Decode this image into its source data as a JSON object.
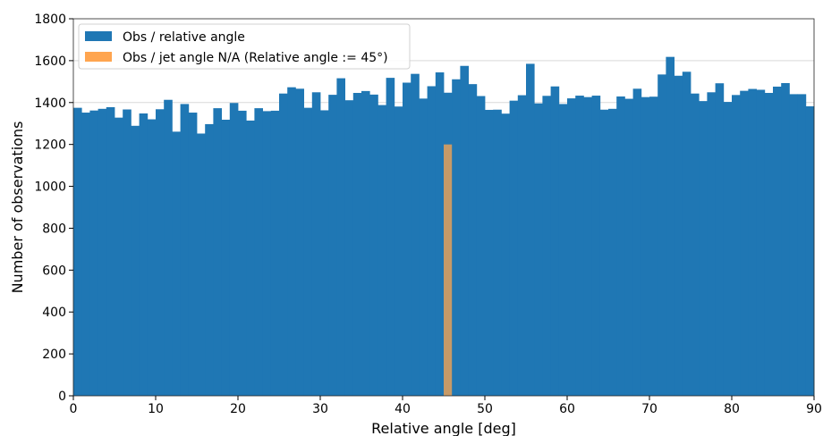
{
  "chart_data": {
    "type": "bar",
    "title": "",
    "xlabel": "Relative angle [deg]",
    "ylabel": "Number of observations",
    "xlim": [
      0,
      90
    ],
    "ylim": [
      0,
      1800
    ],
    "xticks": [
      0,
      10,
      20,
      30,
      40,
      50,
      60,
      70,
      80,
      90
    ],
    "yticks": [
      0,
      200,
      400,
      600,
      800,
      1000,
      1200,
      1400,
      1600,
      1800
    ],
    "grid": "horizontal",
    "legend_position": "top-left",
    "bin_width": 1,
    "series": [
      {
        "name": "Obs / relative angle",
        "color": "#1f77b4",
        "bin_starts": [
          0,
          1,
          2,
          3,
          4,
          5,
          6,
          7,
          8,
          9,
          10,
          11,
          12,
          13,
          14,
          15,
          16,
          17,
          18,
          19,
          20,
          21,
          22,
          23,
          24,
          25,
          26,
          27,
          28,
          29,
          30,
          31,
          32,
          33,
          34,
          35,
          36,
          37,
          38,
          39,
          40,
          41,
          42,
          43,
          44,
          45,
          46,
          47,
          48,
          49,
          50,
          51,
          52,
          53,
          54,
          55,
          56,
          57,
          58,
          59,
          60,
          61,
          62,
          63,
          64,
          65,
          66,
          67,
          68,
          69,
          70,
          71,
          72,
          73,
          74,
          75,
          76,
          77,
          78,
          79,
          80,
          81,
          82,
          83,
          84,
          85,
          86,
          87,
          88,
          89
        ],
        "values": [
          1375,
          1352,
          1362,
          1370,
          1378,
          1328,
          1367,
          1289,
          1348,
          1320,
          1368,
          1413,
          1261,
          1393,
          1352,
          1252,
          1297,
          1373,
          1318,
          1398,
          1361,
          1314,
          1373,
          1359,
          1361,
          1443,
          1473,
          1466,
          1375,
          1449,
          1363,
          1437,
          1516,
          1411,
          1446,
          1455,
          1438,
          1388,
          1518,
          1381,
          1495,
          1537,
          1419,
          1478,
          1544,
          1447,
          1511,
          1575,
          1488,
          1431,
          1365,
          1366,
          1347,
          1409,
          1435,
          1585,
          1396,
          1432,
          1477,
          1393,
          1420,
          1433,
          1426,
          1433,
          1366,
          1370,
          1429,
          1418,
          1466,
          1426,
          1428,
          1534,
          1618,
          1528,
          1547,
          1443,
          1407,
          1449,
          1492,
          1403,
          1436,
          1456,
          1465,
          1461,
          1446,
          1476,
          1493,
          1440,
          1440,
          1382
        ]
      },
      {
        "name": "Obs / jet angle N/A (Relative angle := 45°)",
        "color": "#ffa54f",
        "bin_starts": [
          45
        ],
        "values": [
          1200
        ]
      }
    ]
  }
}
